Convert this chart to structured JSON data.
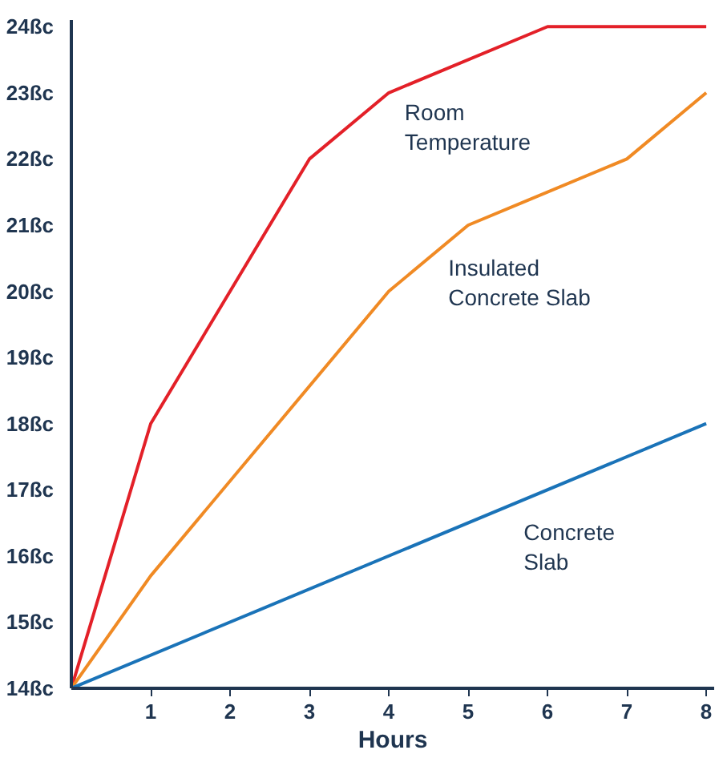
{
  "chart_data": {
    "type": "line",
    "xlabel": "Hours",
    "xlim": [
      0,
      8.1
    ],
    "ylim": [
      14,
      24.1
    ],
    "xticks": [
      1,
      2,
      3,
      4,
      5,
      6,
      7,
      8
    ],
    "yticks": [
      {
        "value": 14,
        "label": "14ßc"
      },
      {
        "value": 15,
        "label": "15ßc"
      },
      {
        "value": 16,
        "label": "16ßc"
      },
      {
        "value": 17,
        "label": "17ßc"
      },
      {
        "value": 18,
        "label": "18ßc"
      },
      {
        "value": 19,
        "label": "19ßc"
      },
      {
        "value": 20,
        "label": "20ßc"
      },
      {
        "value": 21,
        "label": "21ßc"
      },
      {
        "value": 22,
        "label": "22ßc"
      },
      {
        "value": 23,
        "label": "23ßc"
      },
      {
        "value": 24,
        "label": "24ßc"
      }
    ],
    "grid": false,
    "marker": "none",
    "line_style": "solid",
    "series": [
      {
        "name": "Room\nTemperature",
        "color": "#e32028",
        "x": [
          0,
          1,
          3,
          4,
          6,
          8
        ],
        "values": [
          14,
          18,
          22,
          23,
          24,
          24
        ]
      },
      {
        "name": "Insulated\nConcrete Slab",
        "color": "#f08a24",
        "x": [
          0,
          1,
          4,
          5,
          7,
          8
        ],
        "values": [
          14,
          15.7,
          20,
          21,
          22,
          23
        ]
      },
      {
        "name": "Concrete\nSlab",
        "color": "#1a73b8",
        "x": [
          0,
          8
        ],
        "values": [
          14,
          18
        ]
      }
    ]
  }
}
